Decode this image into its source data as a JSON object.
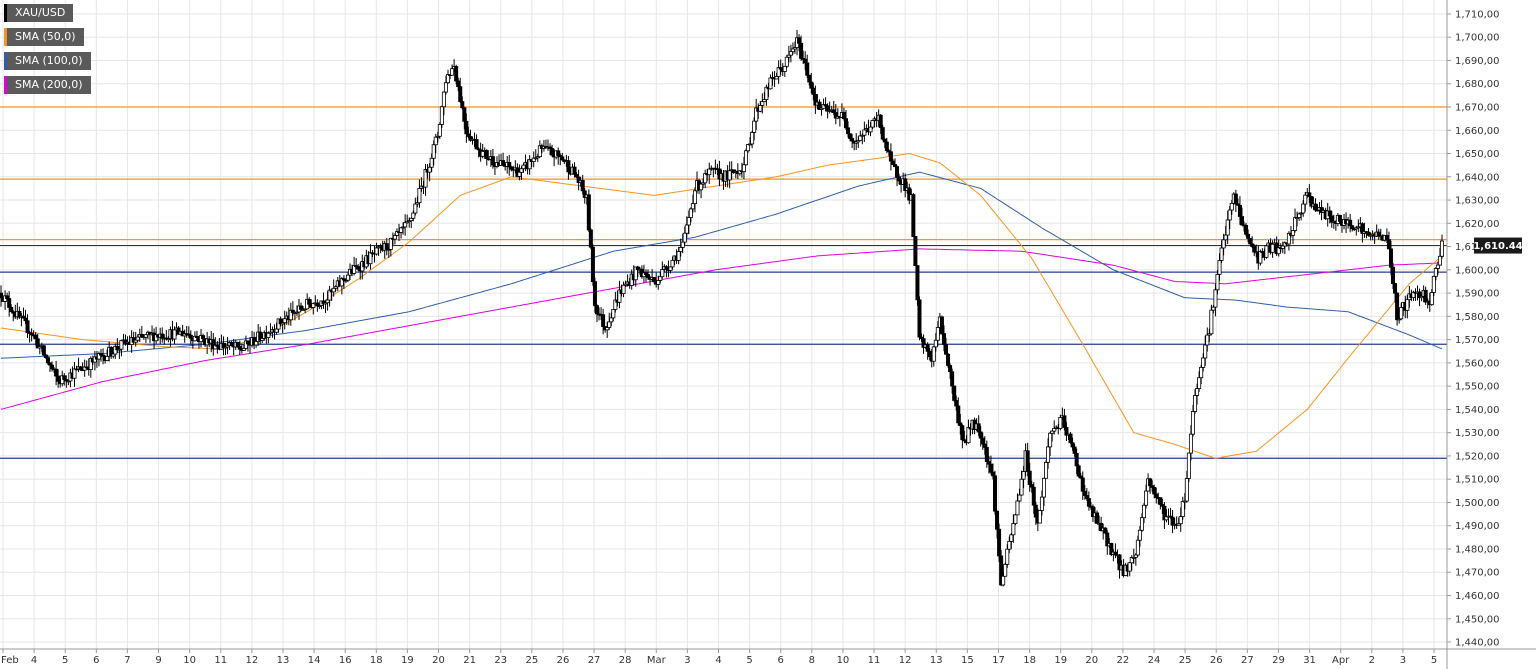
{
  "chart_data": {
    "type": "candlestick",
    "symbol": "XAU/USD",
    "last_price_label": "1,610.44",
    "last_price": 1610.44,
    "ylim": [
      1437,
      1716
    ],
    "y_ticks": [
      1440,
      1450,
      1460,
      1470,
      1480,
      1490,
      1500,
      1510,
      1520,
      1530,
      1540,
      1550,
      1560,
      1570,
      1580,
      1590,
      1600,
      1610,
      1620,
      1630,
      1640,
      1650,
      1660,
      1670,
      1680,
      1690,
      1700,
      1710
    ],
    "y_tick_labels": [
      "1,440,00",
      "1,450,00",
      "1,460,00",
      "1,470,00",
      "1,480,00",
      "1,490,00",
      "1,500,00",
      "1,510,00",
      "1,520,00",
      "1,530,00",
      "1,540,00",
      "1,550,00",
      "1,560,00",
      "1,570,00",
      "1,580,00",
      "1,590,00",
      "1,600,00",
      "1,610,00",
      "1,620,00",
      "1,630,00",
      "1,640,00",
      "1,650,00",
      "1,660,00",
      "1,670,00",
      "1,680,00",
      "1,690,00",
      "1,700,00",
      "1,710,00"
    ],
    "x_labels": [
      "Feb",
      "4",
      "5",
      "6",
      "7",
      "9",
      "10",
      "11",
      "12",
      "13",
      "14",
      "16",
      "18",
      "19",
      "20",
      "21",
      "23",
      "25",
      "26",
      "27",
      "28",
      "Mar",
      "3",
      "4",
      "5",
      "6",
      "8",
      "10",
      "11",
      "12",
      "13",
      "15",
      "17",
      "18",
      "19",
      "20",
      "22",
      "24",
      "25",
      "26",
      "27",
      "29",
      "31",
      "Apr",
      "2",
      "3",
      "5"
    ],
    "grid": true,
    "legend": [
      {
        "name": "XAU/USD",
        "color": "#000000"
      },
      {
        "name": "SMA (50,0)",
        "color": "#f7931e"
      },
      {
        "name": "SMA (100,0)",
        "color": "#2e5fa8"
      },
      {
        "name": "SMA (200,0)",
        "color": "#e000e0"
      }
    ],
    "resistance_levels": [
      1670,
      1639,
      1613
    ],
    "support_levels": [
      1599,
      1568,
      1519
    ],
    "resistance_color": "#f7931e",
    "support_color": "#1f3f8f",
    "current_price_line_color": "#333333",
    "up_color": "#ffffff",
    "down_color": "#000000",
    "price_keypoints": [
      [
        0,
        1590
      ],
      [
        8,
        1580
      ],
      [
        15,
        1573
      ],
      [
        22,
        1562
      ],
      [
        28,
        1552
      ],
      [
        38,
        1557
      ],
      [
        48,
        1562
      ],
      [
        60,
        1568
      ],
      [
        75,
        1572
      ],
      [
        90,
        1573
      ],
      [
        105,
        1568
      ],
      [
        118,
        1566
      ],
      [
        128,
        1572
      ],
      [
        138,
        1578
      ],
      [
        150,
        1585
      ],
      [
        160,
        1588
      ],
      [
        170,
        1598
      ],
      [
        182,
        1606
      ],
      [
        192,
        1612
      ],
      [
        200,
        1620
      ],
      [
        207,
        1638
      ],
      [
        214,
        1658
      ],
      [
        218,
        1682
      ],
      [
        222,
        1688
      ],
      [
        228,
        1660
      ],
      [
        236,
        1650
      ],
      [
        245,
        1645
      ],
      [
        255,
        1642
      ],
      [
        265,
        1652
      ],
      [
        275,
        1648
      ],
      [
        282,
        1640
      ],
      [
        287,
        1630
      ],
      [
        291,
        1585
      ],
      [
        296,
        1575
      ],
      [
        303,
        1590
      ],
      [
        312,
        1600
      ],
      [
        320,
        1595
      ],
      [
        327,
        1602
      ],
      [
        334,
        1610
      ],
      [
        340,
        1635
      ],
      [
        348,
        1642
      ],
      [
        356,
        1640
      ],
      [
        364,
        1645
      ],
      [
        370,
        1668
      ],
      [
        378,
        1682
      ],
      [
        384,
        1688
      ],
      [
        390,
        1698
      ],
      [
        394,
        1688
      ],
      [
        400,
        1670
      ],
      [
        406,
        1668
      ],
      [
        412,
        1666
      ],
      [
        418,
        1655
      ],
      [
        424,
        1660
      ],
      [
        430,
        1665
      ],
      [
        436,
        1645
      ],
      [
        442,
        1638
      ],
      [
        446,
        1630
      ],
      [
        450,
        1570
      ],
      [
        456,
        1562
      ],
      [
        460,
        1578
      ],
      [
        464,
        1560
      ],
      [
        468,
        1540
      ],
      [
        472,
        1525
      ],
      [
        476,
        1535
      ],
      [
        480,
        1530
      ],
      [
        486,
        1510
      ],
      [
        490,
        1465
      ],
      [
        496,
        1490
      ],
      [
        502,
        1520
      ],
      [
        508,
        1490
      ],
      [
        514,
        1530
      ],
      [
        520,
        1535
      ],
      [
        526,
        1520
      ],
      [
        532,
        1500
      ],
      [
        538,
        1490
      ],
      [
        544,
        1480
      ],
      [
        550,
        1470
      ],
      [
        556,
        1478
      ],
      [
        562,
        1510
      ],
      [
        570,
        1495
      ],
      [
        576,
        1490
      ],
      [
        580,
        1502
      ],
      [
        584,
        1540
      ],
      [
        588,
        1560
      ],
      [
        592,
        1575
      ],
      [
        598,
        1608
      ],
      [
        604,
        1632
      ],
      [
        610,
        1615
      ],
      [
        616,
        1605
      ],
      [
        622,
        1610
      ],
      [
        628,
        1608
      ],
      [
        634,
        1620
      ],
      [
        640,
        1632
      ],
      [
        646,
        1625
      ],
      [
        652,
        1622
      ],
      [
        658,
        1620
      ],
      [
        664,
        1620
      ],
      [
        670,
        1614
      ],
      [
        676,
        1616
      ],
      [
        680,
        1610
      ],
      [
        684,
        1580
      ],
      [
        688,
        1585
      ],
      [
        692,
        1590
      ],
      [
        696,
        1590
      ],
      [
        700,
        1587
      ],
      [
        706,
        1612
      ]
    ],
    "candle_count": 707,
    "sma50": [
      [
        0,
        1575
      ],
      [
        40,
        1570
      ],
      [
        80,
        1567
      ],
      [
        105,
        1566
      ],
      [
        125,
        1570
      ],
      [
        150,
        1582
      ],
      [
        175,
        1596
      ],
      [
        200,
        1612
      ],
      [
        225,
        1632
      ],
      [
        250,
        1640
      ],
      [
        285,
        1636
      ],
      [
        320,
        1632
      ],
      [
        350,
        1636
      ],
      [
        380,
        1640
      ],
      [
        405,
        1645
      ],
      [
        430,
        1648
      ],
      [
        445,
        1650
      ],
      [
        460,
        1646
      ],
      [
        480,
        1632
      ],
      [
        505,
        1605
      ],
      [
        530,
        1568
      ],
      [
        555,
        1530
      ],
      [
        575,
        1525
      ],
      [
        595,
        1519
      ],
      [
        615,
        1522
      ],
      [
        640,
        1540
      ],
      [
        660,
        1562
      ],
      [
        675,
        1578
      ],
      [
        690,
        1594
      ],
      [
        706,
        1606
      ]
    ],
    "sma100": [
      [
        0,
        1562
      ],
      [
        50,
        1564
      ],
      [
        100,
        1568
      ],
      [
        150,
        1574
      ],
      [
        200,
        1582
      ],
      [
        250,
        1594
      ],
      [
        300,
        1608
      ],
      [
        340,
        1614
      ],
      [
        380,
        1624
      ],
      [
        420,
        1636
      ],
      [
        450,
        1642
      ],
      [
        480,
        1635
      ],
      [
        510,
        1618
      ],
      [
        545,
        1600
      ],
      [
        580,
        1588
      ],
      [
        605,
        1587
      ],
      [
        630,
        1584
      ],
      [
        660,
        1582
      ],
      [
        690,
        1572
      ],
      [
        706,
        1566
      ]
    ],
    "sma200": [
      [
        0,
        1540
      ],
      [
        50,
        1552
      ],
      [
        100,
        1561
      ],
      [
        150,
        1568
      ],
      [
        200,
        1576
      ],
      [
        250,
        1584
      ],
      [
        300,
        1592
      ],
      [
        350,
        1600
      ],
      [
        400,
        1606
      ],
      [
        450,
        1609
      ],
      [
        500,
        1608
      ],
      [
        545,
        1602
      ],
      [
        575,
        1595
      ],
      [
        600,
        1594
      ],
      [
        640,
        1598
      ],
      [
        680,
        1602
      ],
      [
        706,
        1603
      ]
    ]
  }
}
